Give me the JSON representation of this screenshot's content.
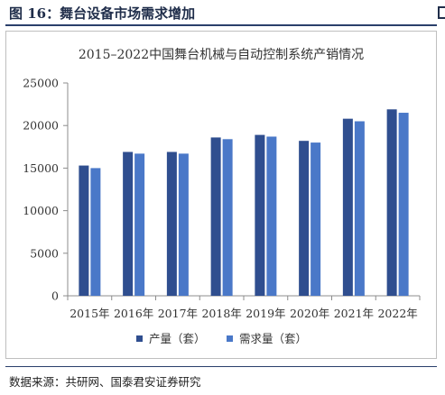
{
  "figure": {
    "title": "图 16：舞台设备市场需求增加",
    "source": "数据来源：共研网、国泰君安证券研究"
  },
  "chart_data": {
    "type": "bar",
    "title": "2015–2022中国舞台机械与自动控制系统产销情况",
    "categories": [
      "2015年",
      "2016年",
      "2017年",
      "2018年",
      "2019年",
      "2020年",
      "2021年",
      "2022年"
    ],
    "series": [
      {
        "name": "产量（套）",
        "color": "#2f4e8f",
        "values": [
          15300,
          16900,
          16900,
          18600,
          18900,
          18200,
          20800,
          21900
        ]
      },
      {
        "name": "需求量（套）",
        "color": "#4a78c8",
        "values": [
          15000,
          16700,
          16700,
          18400,
          18700,
          18000,
          20500,
          21500
        ]
      }
    ],
    "ylim": [
      0,
      25000
    ],
    "yticks": [
      0,
      5000,
      10000,
      15000,
      20000,
      25000
    ],
    "grid": false,
    "legend_position": "bottom"
  }
}
